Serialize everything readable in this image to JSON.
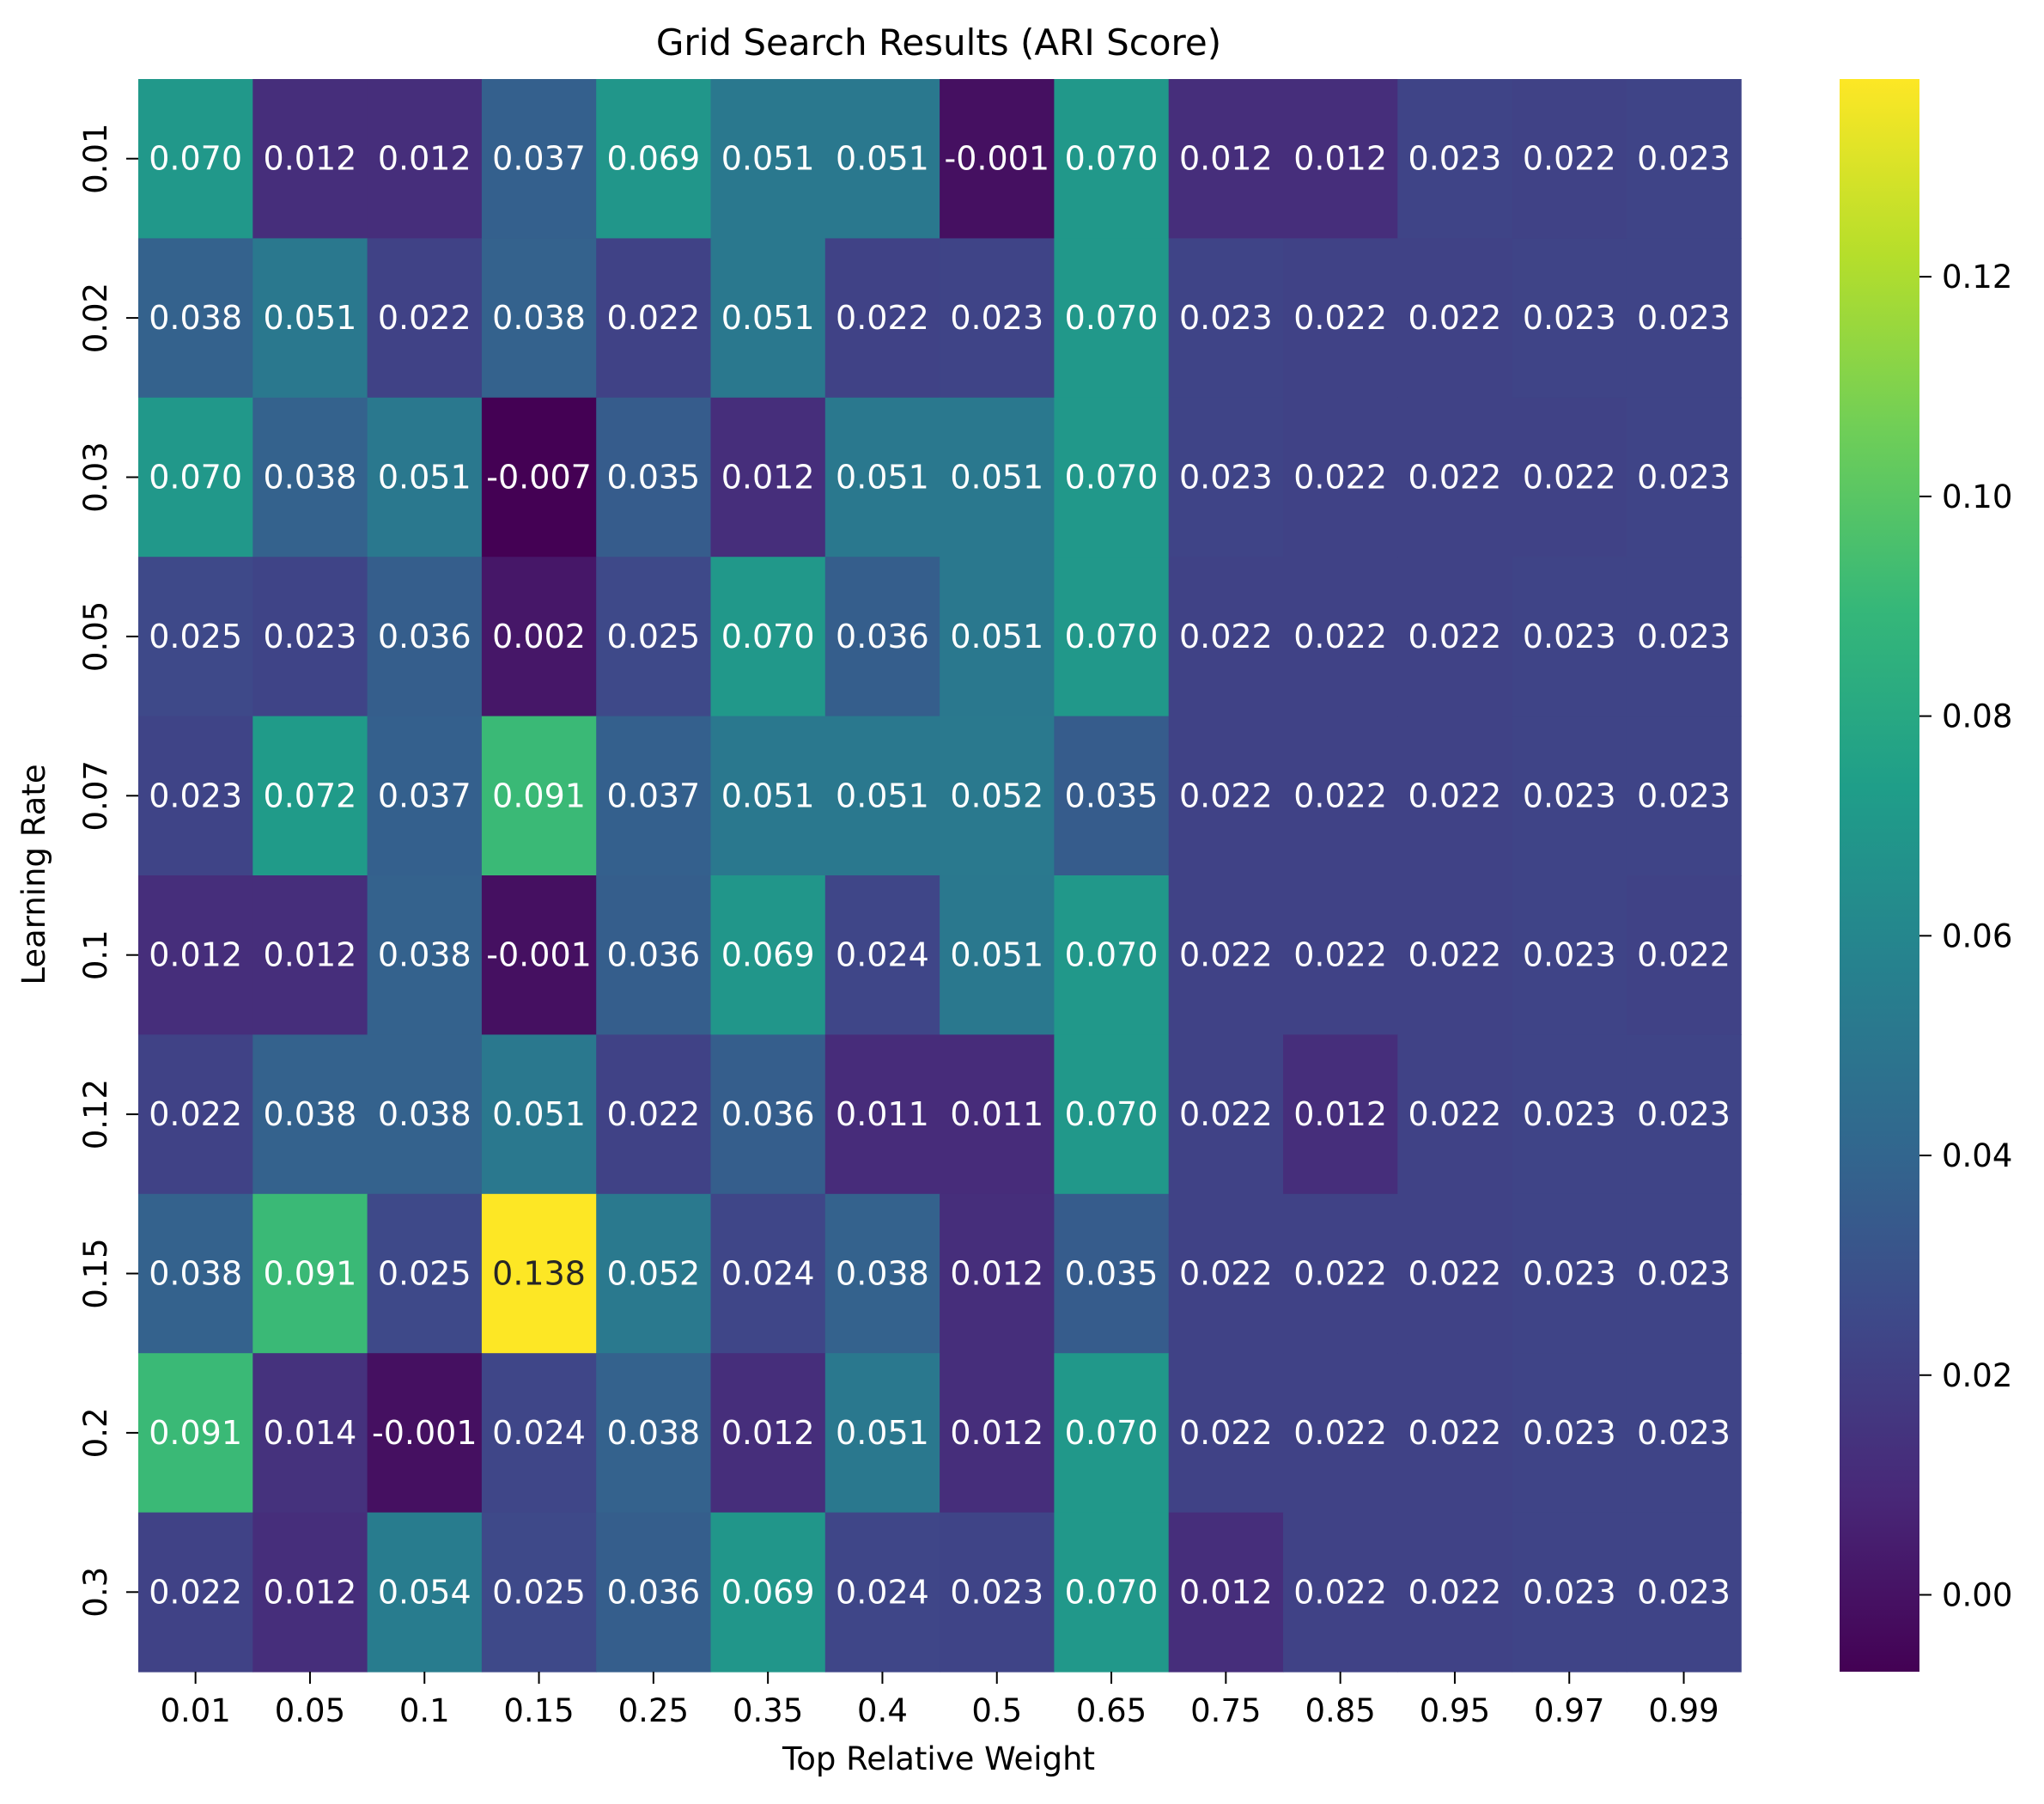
{
  "chart_data": {
    "type": "heatmap",
    "title": "Grid Search Results (ARI Score)",
    "xlabel": "Top Relative Weight",
    "ylabel": "Learning Rate",
    "x_categories": [
      "0.01",
      "0.05",
      "0.1",
      "0.15",
      "0.25",
      "0.35",
      "0.4",
      "0.5",
      "0.65",
      "0.75",
      "0.85",
      "0.95",
      "0.97",
      "0.99"
    ],
    "y_categories": [
      "0.01",
      "0.02",
      "0.03",
      "0.05",
      "0.07",
      "0.1",
      "0.12",
      "0.15",
      "0.2",
      "0.3"
    ],
    "values": [
      [
        "0.070",
        "0.012",
        "0.012",
        "0.037",
        "0.069",
        "0.051",
        "0.051",
        "-0.001",
        "0.070",
        "0.012",
        "0.012",
        "0.023",
        "0.022",
        "0.023"
      ],
      [
        "0.038",
        "0.051",
        "0.022",
        "0.038",
        "0.022",
        "0.051",
        "0.022",
        "0.023",
        "0.070",
        "0.023",
        "0.022",
        "0.022",
        "0.023",
        "0.023"
      ],
      [
        "0.070",
        "0.038",
        "0.051",
        "-0.007",
        "0.035",
        "0.012",
        "0.051",
        "0.051",
        "0.070",
        "0.023",
        "0.022",
        "0.022",
        "0.022",
        "0.023"
      ],
      [
        "0.025",
        "0.023",
        "0.036",
        "0.002",
        "0.025",
        "0.070",
        "0.036",
        "0.051",
        "0.070",
        "0.022",
        "0.022",
        "0.022",
        "0.023",
        "0.023"
      ],
      [
        "0.023",
        "0.072",
        "0.037",
        "0.091",
        "0.037",
        "0.051",
        "0.051",
        "0.052",
        "0.035",
        "0.022",
        "0.022",
        "0.022",
        "0.023",
        "0.023"
      ],
      [
        "0.012",
        "0.012",
        "0.038",
        "-0.001",
        "0.036",
        "0.069",
        "0.024",
        "0.051",
        "0.070",
        "0.022",
        "0.022",
        "0.022",
        "0.023",
        "0.022"
      ],
      [
        "0.022",
        "0.038",
        "0.038",
        "0.051",
        "0.022",
        "0.036",
        "0.011",
        "0.011",
        "0.070",
        "0.022",
        "0.012",
        "0.022",
        "0.023",
        "0.023"
      ],
      [
        "0.038",
        "0.091",
        "0.025",
        "0.138",
        "0.052",
        "0.024",
        "0.038",
        "0.012",
        "0.035",
        "0.022",
        "0.022",
        "0.022",
        "0.023",
        "0.023"
      ],
      [
        "0.091",
        "0.014",
        "-0.001",
        "0.024",
        "0.038",
        "0.012",
        "0.051",
        "0.012",
        "0.070",
        "0.022",
        "0.022",
        "0.022",
        "0.023",
        "0.023"
      ],
      [
        "0.022",
        "0.012",
        "0.054",
        "0.025",
        "0.036",
        "0.069",
        "0.024",
        "0.023",
        "0.070",
        "0.012",
        "0.022",
        "0.022",
        "0.023",
        "0.023"
      ]
    ],
    "colormap": "viridis",
    "colorbar": {
      "vmin": -0.007,
      "vmax": 0.138,
      "ticks": [
        "0.00",
        "0.02",
        "0.04",
        "0.06",
        "0.08",
        "0.10",
        "0.12"
      ]
    },
    "annotation_threshold": 0.1,
    "annotation_colors": {
      "light": "#ffffff",
      "dark": "#262626"
    },
    "grid": false,
    "legend": "colorbar-right"
  }
}
